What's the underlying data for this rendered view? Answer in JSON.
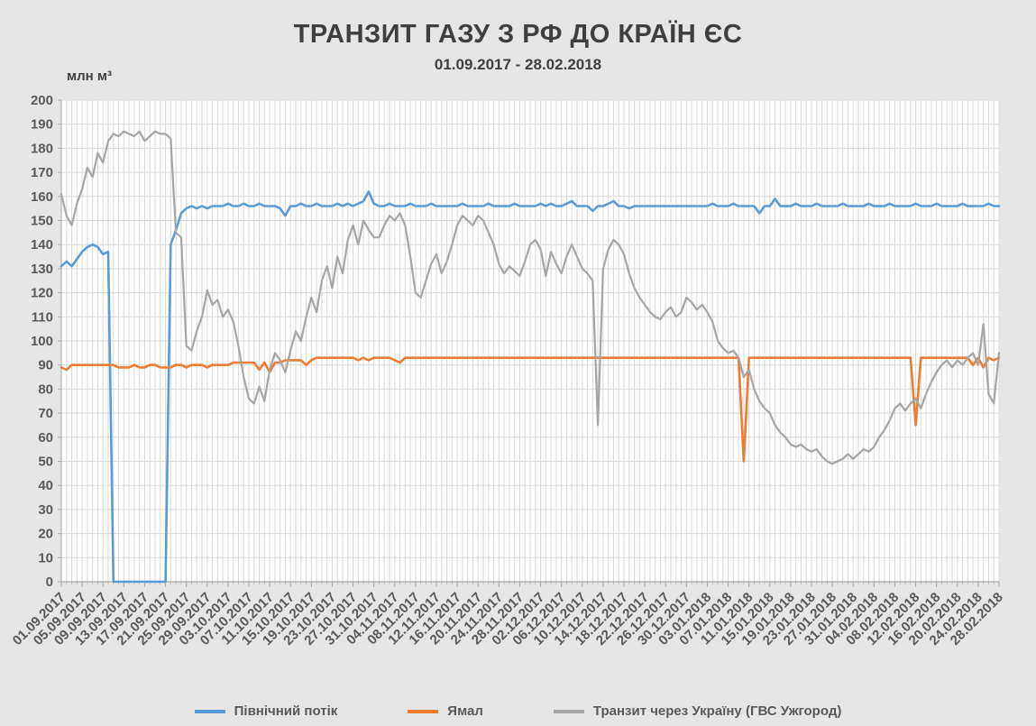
{
  "chart_data": {
    "type": "line",
    "title": "ТРАНЗИТ ГАЗУ З РФ ДО КРАЇН ЄС",
    "subtitle": "01.09.2017 - 28.02.2018",
    "ylabel": "млн м³",
    "xlabel": "",
    "ylim": [
      0,
      200
    ],
    "ytick_step": 10,
    "yticks": [
      0,
      10,
      20,
      30,
      40,
      50,
      60,
      70,
      80,
      90,
      100,
      110,
      120,
      130,
      140,
      150,
      160,
      170,
      180,
      190,
      200
    ],
    "grid": true,
    "legend_position": "bottom",
    "days_per_tick": 4,
    "x_tick_labels": [
      "01.09.2017",
      "05.09.2017",
      "09.09.2017",
      "13.09.2017",
      "17.09.2017",
      "21.09.2017",
      "25.09.2017",
      "29.09.2017",
      "03.10.2017",
      "07.10.2017",
      "11.10.2017",
      "15.10.2017",
      "19.10.2017",
      "23.10.2017",
      "27.10.2017",
      "31.10.2017",
      "04.11.2017",
      "08.11.2017",
      "12.11.2017",
      "16.11.2017",
      "20.11.2017",
      "24.11.2017",
      "28.11.2017",
      "02.12.2017",
      "06.12.2017",
      "10.12.2017",
      "14.12.2017",
      "18.12.2017",
      "22.12.2017",
      "26.12.2017",
      "30.12.2017",
      "03.01.2018",
      "07.01.2018",
      "11.01.2018",
      "15.01.2018",
      "19.01.2018",
      "23.01.2018",
      "27.01.2018",
      "31.01.2018",
      "04.02.2018",
      "08.02.2018",
      "12.02.2018",
      "16.02.2018",
      "20.02.2018",
      "24.02.2018",
      "28.02.2018"
    ],
    "colors": {
      "background": "#E7E6E6",
      "plot_background": "#FFFFFF",
      "grid": "#D9D9D9",
      "axis": "#A6A6A6",
      "title_text": "#3F3F3F",
      "tick_text": "#595959"
    },
    "series": [
      {
        "name": "Північний потік",
        "color": "#5B9BD5",
        "values": [
          131,
          133,
          131,
          134,
          137,
          139,
          140,
          139,
          136,
          137,
          0,
          0,
          0,
          0,
          0,
          0,
          0,
          0,
          0,
          0,
          0,
          140,
          146,
          153,
          155,
          156,
          155,
          156,
          155,
          156,
          156,
          156,
          157,
          156,
          156,
          157,
          156,
          156,
          157,
          156,
          156,
          156,
          155,
          152,
          156,
          156,
          157,
          156,
          156,
          157,
          156,
          156,
          156,
          157,
          156,
          157,
          156,
          157,
          158,
          162,
          157,
          156,
          156,
          157,
          156,
          156,
          156,
          157,
          156,
          156,
          156,
          157,
          156,
          156,
          156,
          156,
          156,
          157,
          156,
          156,
          156,
          156,
          157,
          156,
          156,
          156,
          156,
          157,
          156,
          156,
          156,
          156,
          157,
          156,
          157,
          156,
          156,
          157,
          158,
          156,
          156,
          156,
          154,
          156,
          156,
          157,
          158,
          156,
          156,
          155,
          156,
          156,
          156,
          156,
          156,
          156,
          156,
          156,
          156,
          156,
          156,
          156,
          156,
          156,
          156,
          157,
          156,
          156,
          156,
          157,
          156,
          156,
          156,
          156,
          153,
          156,
          156,
          159,
          156,
          156,
          156,
          157,
          156,
          156,
          156,
          157,
          156,
          156,
          156,
          156,
          157,
          156,
          156,
          156,
          156,
          157,
          156,
          156,
          156,
          157,
          156,
          156,
          156,
          156,
          157,
          156,
          156,
          156,
          157,
          156,
          156,
          156,
          156,
          157,
          156,
          156,
          156,
          156,
          157,
          156,
          156
        ]
      },
      {
        "name": "Ямал",
        "color": "#ED7D31",
        "values": [
          89,
          88,
          90,
          90,
          90,
          90,
          90,
          90,
          90,
          90,
          90,
          89,
          89,
          89,
          90,
          89,
          89,
          90,
          90,
          89,
          89,
          89,
          90,
          90,
          89,
          90,
          90,
          90,
          89,
          90,
          90,
          90,
          90,
          91,
          91,
          91,
          91,
          91,
          88,
          91,
          87,
          91,
          91,
          92,
          92,
          92,
          92,
          90,
          92,
          93,
          93,
          93,
          93,
          93,
          93,
          93,
          93,
          92,
          93,
          92,
          93,
          93,
          93,
          93,
          92,
          91,
          93,
          93,
          93,
          93,
          93,
          93,
          93,
          93,
          93,
          93,
          93,
          93,
          93,
          93,
          93,
          93,
          93,
          93,
          93,
          93,
          93,
          93,
          93,
          93,
          93,
          93,
          93,
          93,
          93,
          93,
          93,
          93,
          93,
          93,
          93,
          93,
          93,
          93,
          93,
          93,
          93,
          93,
          93,
          93,
          93,
          93,
          93,
          93,
          93,
          93,
          93,
          93,
          93,
          93,
          93,
          93,
          93,
          93,
          93,
          93,
          93,
          93,
          93,
          93,
          93,
          50,
          93,
          93,
          93,
          93,
          93,
          93,
          93,
          93,
          93,
          93,
          93,
          93,
          93,
          93,
          93,
          93,
          93,
          93,
          93,
          93,
          93,
          93,
          93,
          93,
          93,
          93,
          93,
          93,
          93,
          93,
          93,
          93,
          65,
          93,
          93,
          93,
          93,
          93,
          93,
          93,
          93,
          93,
          93,
          90,
          93,
          89,
          93,
          92,
          93
        ]
      },
      {
        "name": "Транзит через Україну (ГВС Ужгород)",
        "color": "#A5A5A5",
        "values": [
          161,
          152,
          148,
          157,
          163,
          172,
          168,
          178,
          174,
          183,
          186,
          185,
          187,
          186,
          185,
          187,
          183,
          185,
          187,
          186,
          186,
          184,
          145,
          143,
          98,
          96,
          104,
          110,
          121,
          115,
          117,
          110,
          113,
          108,
          98,
          85,
          76,
          74,
          81,
          75,
          88,
          95,
          92,
          87,
          96,
          104,
          100,
          110,
          118,
          112,
          125,
          131,
          122,
          135,
          128,
          142,
          148,
          140,
          150,
          146,
          143,
          143,
          148,
          152,
          150,
          153,
          148,
          135,
          120,
          118,
          125,
          132,
          136,
          128,
          133,
          140,
          148,
          152,
          150,
          148,
          152,
          150,
          145,
          140,
          132,
          128,
          131,
          129,
          127,
          133,
          140,
          142,
          138,
          127,
          137,
          132,
          128,
          135,
          140,
          135,
          130,
          128,
          125,
          65,
          130,
          138,
          142,
          140,
          136,
          128,
          122,
          118,
          115,
          112,
          110,
          109,
          112,
          114,
          110,
          112,
          118,
          116,
          113,
          115,
          112,
          108,
          100,
          97,
          95,
          96,
          93,
          85,
          88,
          80,
          75,
          72,
          70,
          65,
          62,
          60,
          57,
          56,
          57,
          55,
          54,
          55,
          52,
          50,
          49,
          50,
          51,
          53,
          51,
          53,
          55,
          54,
          56,
          60,
          63,
          67,
          72,
          74,
          71,
          74,
          76,
          72,
          78,
          83,
          87,
          90,
          92,
          89,
          92,
          90,
          93,
          95,
          90,
          107,
          78,
          74,
          95
        ]
      }
    ]
  }
}
